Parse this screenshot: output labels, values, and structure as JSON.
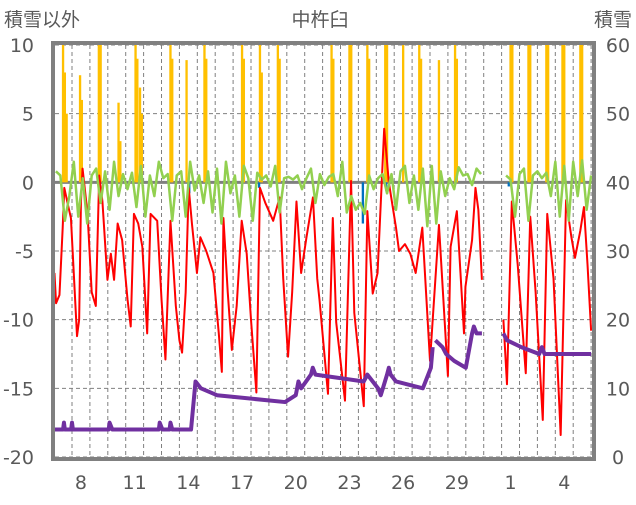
{
  "chart_data": {
    "type": "line",
    "title": "中杵臼",
    "ylabel_left": "積雪以外",
    "ylabel_right": "積雪",
    "ylim_left": [
      -20,
      10
    ],
    "ylim_right": [
      0,
      60
    ],
    "xlim": [
      6.55,
      36.55
    ],
    "grid": true,
    "yticks_left": [
      "10",
      "5",
      "0",
      "-5",
      "-10",
      "-15",
      "-20"
    ],
    "yticks_left_values": [
      10,
      5,
      0,
      -5,
      -10,
      -15,
      -20
    ],
    "yticks_right": [
      "60",
      "50",
      "40",
      "30",
      "20",
      "10",
      "0"
    ],
    "xticks": [
      {
        "label": "8",
        "day": 8
      },
      {
        "label": "11",
        "day": 11
      },
      {
        "label": "14",
        "day": 14
      },
      {
        "label": "17",
        "day": 17
      },
      {
        "label": "20",
        "day": 20
      },
      {
        "label": "23",
        "day": 23
      },
      {
        "label": "26",
        "day": 26
      },
      {
        "label": "29",
        "day": 29
      },
      {
        "label": "1",
        "day": 32
      },
      {
        "label": "4",
        "day": 35
      }
    ],
    "colors": {
      "precip": "#FFC000",
      "blue": "#0070C0",
      "temperature": "#FF0000",
      "green": "#92D050",
      "snow": "#7030A0",
      "frame": "#808080"
    },
    "series": [
      {
        "name": "precip_bars",
        "axis": "left",
        "kind": "bar",
        "points": [
          [
            7.0,
            12
          ],
          [
            7.1,
            8
          ],
          [
            7.2,
            5
          ],
          [
            7.95,
            7.8
          ],
          [
            8.05,
            6
          ],
          [
            9.0,
            12
          ],
          [
            9.1,
            10
          ],
          [
            10.1,
            5.8
          ],
          [
            10.2,
            3
          ],
          [
            11.05,
            12
          ],
          [
            11.15,
            9
          ],
          [
            11.3,
            6.9
          ],
          [
            11.4,
            5
          ],
          [
            13.0,
            12
          ],
          [
            13.1,
            9
          ],
          [
            13.9,
            8.9
          ],
          [
            14.9,
            12
          ],
          [
            15.0,
            9
          ],
          [
            17.0,
            12
          ],
          [
            17.1,
            9
          ],
          [
            18.0,
            12
          ],
          [
            18.1,
            8
          ],
          [
            19.0,
            12
          ],
          [
            19.1,
            9
          ],
          [
            22.0,
            12
          ],
          [
            22.1,
            9
          ],
          [
            23.0,
            12
          ],
          [
            23.1,
            10
          ],
          [
            24.0,
            12
          ],
          [
            24.1,
            9
          ],
          [
            25.0,
            12
          ],
          [
            25.1,
            10
          ],
          [
            26.0,
            12
          ],
          [
            26.9,
            12
          ],
          [
            27.0,
            9
          ],
          [
            28.0,
            8.9
          ],
          [
            28.9,
            12
          ],
          [
            29.0,
            9
          ],
          [
            32.0,
            12
          ],
          [
            32.1,
            10
          ],
          [
            33.0,
            12
          ],
          [
            33.1,
            10
          ],
          [
            34.0,
            12
          ],
          [
            34.1,
            10
          ],
          [
            34.9,
            12
          ],
          [
            35.0,
            10
          ],
          [
            35.9,
            12
          ],
          [
            36.0,
            10
          ]
        ]
      },
      {
        "name": "blue_bars",
        "axis": "left",
        "kind": "bar",
        "points": [
          [
            14.0,
            -1.5
          ],
          [
            14.05,
            -0.8
          ],
          [
            17.95,
            -0.4
          ],
          [
            23.75,
            -3.0
          ],
          [
            25.05,
            -0.6
          ],
          [
            31.9,
            -0.3
          ]
        ]
      },
      {
        "name": "temperature",
        "axis": "left",
        "kind": "line",
        "segments": [
          [
            [
              6.52,
              -6.6
            ],
            [
              6.61,
              -8.8
            ],
            [
              6.8,
              -8.2
            ],
            [
              6.98,
              -3.3
            ],
            [
              7.07,
              -0.4
            ],
            [
              7.25,
              -1.5
            ],
            [
              7.44,
              -2.6
            ],
            [
              7.78,
              -11.2
            ],
            [
              7.9,
              -10
            ],
            [
              8.0,
              -1.4
            ],
            [
              8.09,
              1.0
            ],
            [
              8.37,
              -2.3
            ],
            [
              8.6,
              -8
            ],
            [
              8.83,
              -9.0
            ],
            [
              9.02,
              0.5
            ],
            [
              9.2,
              -1.4
            ],
            [
              9.48,
              -7.1
            ],
            [
              9.67,
              -5.2
            ],
            [
              9.85,
              -7.1
            ],
            [
              10.05,
              -3
            ],
            [
              10.3,
              -4.2
            ],
            [
              10.6,
              -8.5
            ],
            [
              10.78,
              -10.5
            ],
            [
              10.96,
              -2.3
            ],
            [
              11.2,
              -3
            ],
            [
              11.43,
              -4.7
            ],
            [
              11.7,
              -11.0
            ],
            [
              11.89,
              -2.3
            ],
            [
              12.26,
              -2.8
            ],
            [
              12.5,
              -8.5
            ],
            [
              12.72,
              -12.9
            ],
            [
              13.0,
              -2.8
            ],
            [
              13.3,
              -9
            ],
            [
              13.5,
              -11.5
            ],
            [
              13.65,
              -12.4
            ],
            [
              13.85,
              -8
            ],
            [
              14.02,
              -0.4
            ],
            [
              14.2,
              -3
            ],
            [
              14.48,
              -6.6
            ],
            [
              14.67,
              -4.0
            ],
            [
              15.0,
              -5
            ],
            [
              15.4,
              -6.6
            ],
            [
              15.7,
              -11
            ],
            [
              15.87,
              -13.8
            ],
            [
              15.96,
              -2.6
            ],
            [
              16.2,
              -8
            ],
            [
              16.43,
              -12.2
            ],
            [
              16.7,
              -9
            ],
            [
              16.98,
              -2.8
            ],
            [
              17.26,
              -5.2
            ],
            [
              17.5,
              -10
            ],
            [
              17.8,
              -15.3
            ],
            [
              18.0,
              -0.4
            ],
            [
              18.3,
              -1.5
            ],
            [
              18.74,
              -2.8
            ],
            [
              19.1,
              -1.1
            ],
            [
              19.3,
              -7
            ],
            [
              19.57,
              -12.7
            ],
            [
              19.8,
              -8
            ],
            [
              20.04,
              -1.4
            ],
            [
              20.3,
              -6.6
            ],
            [
              20.6,
              -4
            ],
            [
              20.96,
              -1.1
            ],
            [
              21.2,
              -7
            ],
            [
              21.33,
              -8.6
            ],
            [
              21.8,
              -15.4
            ],
            [
              22.07,
              -2.6
            ],
            [
              22.26,
              -10.2
            ],
            [
              22.75,
              -15.9
            ],
            [
              23.09,
              0.1
            ],
            [
              23.27,
              -9.5
            ],
            [
              23.8,
              -16.3
            ],
            [
              24.0,
              -2.1
            ],
            [
              24.3,
              -8.1
            ],
            [
              24.57,
              -6.6
            ],
            [
              24.94,
              3.9
            ],
            [
              25.2,
              0
            ],
            [
              25.6,
              -3.3
            ],
            [
              25.77,
              -5.0
            ],
            [
              26.1,
              -4.5
            ],
            [
              26.4,
              -5.2
            ],
            [
              26.7,
              -6.6
            ],
            [
              27.07,
              -3.3
            ],
            [
              27.5,
              -13.0
            ],
            [
              28.0,
              -3.1
            ],
            [
              28.5,
              -14.1
            ],
            [
              28.65,
              -4.7
            ],
            [
              29.0,
              -2.1
            ],
            [
              29.4,
              -11.0
            ],
            [
              29.48,
              -7.6
            ],
            [
              29.85,
              -4.2
            ],
            [
              30.04,
              -0.4
            ],
            [
              30.2,
              -2
            ],
            [
              30.4,
              -7.1
            ]
          ],
          [
            [
              31.6,
              -10.0
            ],
            [
              31.8,
              -14.7
            ],
            [
              32.07,
              -1.4
            ],
            [
              32.4,
              -6.0
            ],
            [
              32.85,
              -13.9
            ],
            [
              33.1,
              -2.5
            ],
            [
              33.4,
              -8.0
            ],
            [
              33.8,
              -17.3
            ],
            [
              34.05,
              -2.3
            ],
            [
              34.4,
              -7.0
            ],
            [
              34.8,
              -18.4
            ],
            [
              35.1,
              -1.3
            ],
            [
              35.4,
              -4.0
            ],
            [
              35.6,
              -5.5
            ],
            [
              35.9,
              -3.5
            ],
            [
              36.1,
              -1.8
            ],
            [
              36.3,
              -6.0
            ],
            [
              36.5,
              -10.8
            ]
          ]
        ]
      },
      {
        "name": "green",
        "axis": "left",
        "kind": "line",
        "step": 0.25,
        "segments": [
          {
            "start": 6.6,
            "values": [
              0.8,
              0.5,
              -2.8,
              -1,
              1.5,
              -2.5,
              0.3,
              -3,
              0.5,
              1,
              -1.5,
              0.8,
              -2,
              1.5,
              -1,
              0.6,
              -0.5,
              0.7,
              -1.8,
              1.2,
              -2.5,
              0.5,
              -1,
              1.5,
              0.3,
              0.6,
              -2.8,
              0.5,
              0.8,
              -2.5,
              1.5,
              -0.6,
              0.5,
              -1.5,
              0.8,
              -2.2,
              1,
              -3,
              1.5,
              -0.8,
              0.5,
              -2.5,
              1.2,
              0.3,
              -2.8,
              0.7,
              0.2,
              0.5,
              -0.3,
              1.2,
              -2.2,
              0.3,
              0.4,
              0.2,
              0.5,
              -0.5,
              0.3,
              1,
              -1.5,
              0.6,
              -0.2,
              0.4,
              0.6,
              -1,
              1.5,
              -2.2,
              -1,
              -2,
              -1.5,
              -2.3,
              0.5,
              -0.5,
              0.3,
              0.6,
              -0.8,
              0.6,
              -2,
              0.8,
              1.2,
              -1.5,
              0.5,
              -2,
              1,
              -3.2,
              1.2,
              -3,
              0.8,
              -1,
              0.3,
              -0.5,
              1.1,
              0.5,
              0.6,
              -0.2,
              1,
              0.6
            ]
          },
          {
            "start": 31.75,
            "values": [
              0.5,
              0.2,
              -2.5,
              0.6,
              1,
              -2.8,
              0.5,
              0.8,
              0.3,
              0.7,
              -1,
              1.5,
              -2.5,
              1.2,
              -2.8,
              1.5,
              -1,
              1.6,
              -2,
              0.5
            ]
          }
        ]
      },
      {
        "name": "snow_depth",
        "axis": "right",
        "kind": "step",
        "segments": [
          [
            [
              6.55,
              4
            ],
            [
              7.0,
              4
            ],
            [
              7.05,
              5
            ],
            [
              7.1,
              4
            ],
            [
              7.45,
              4
            ],
            [
              7.5,
              5
            ],
            [
              7.55,
              4
            ],
            [
              9.55,
              4
            ],
            [
              9.6,
              5
            ],
            [
              9.75,
              4
            ],
            [
              12.35,
              4
            ],
            [
              12.4,
              5
            ],
            [
              12.55,
              4
            ],
            [
              12.95,
              4
            ],
            [
              13.0,
              5
            ],
            [
              13.1,
              4
            ],
            [
              14.15,
              4
            ],
            [
              14.4,
              11
            ],
            [
              14.7,
              10
            ],
            [
              15.6,
              9
            ],
            [
              19.4,
              8
            ],
            [
              20.0,
              9
            ],
            [
              20.15,
              11
            ],
            [
              20.3,
              10
            ],
            [
              20.85,
              12
            ],
            [
              20.95,
              13
            ],
            [
              21.1,
              12
            ],
            [
              23.8,
              11
            ],
            [
              24.0,
              12
            ],
            [
              24.3,
              11
            ],
            [
              24.6,
              10
            ],
            [
              24.75,
              9
            ],
            [
              25.1,
              12
            ],
            [
              25.2,
              13
            ],
            [
              25.3,
              12
            ],
            [
              25.6,
              11
            ],
            [
              27.1,
              10
            ],
            [
              27.4,
              12
            ],
            [
              27.55,
              13
            ],
            [
              27.65,
              16
            ]
          ],
          [
            [
              27.8,
              17
            ],
            [
              28.2,
              16
            ],
            [
              28.4,
              15
            ],
            [
              28.85,
              14
            ],
            [
              29.5,
              13
            ],
            [
              29.85,
              18
            ],
            [
              29.95,
              19
            ],
            [
              30.1,
              18
            ],
            [
              30.4,
              18
            ]
          ],
          [
            [
              31.6,
              18
            ],
            [
              31.8,
              17
            ],
            [
              32.6,
              16
            ],
            [
              33.6,
              15
            ],
            [
              33.75,
              16
            ],
            [
              33.9,
              15
            ],
            [
              36.5,
              15
            ]
          ]
        ]
      }
    ]
  }
}
